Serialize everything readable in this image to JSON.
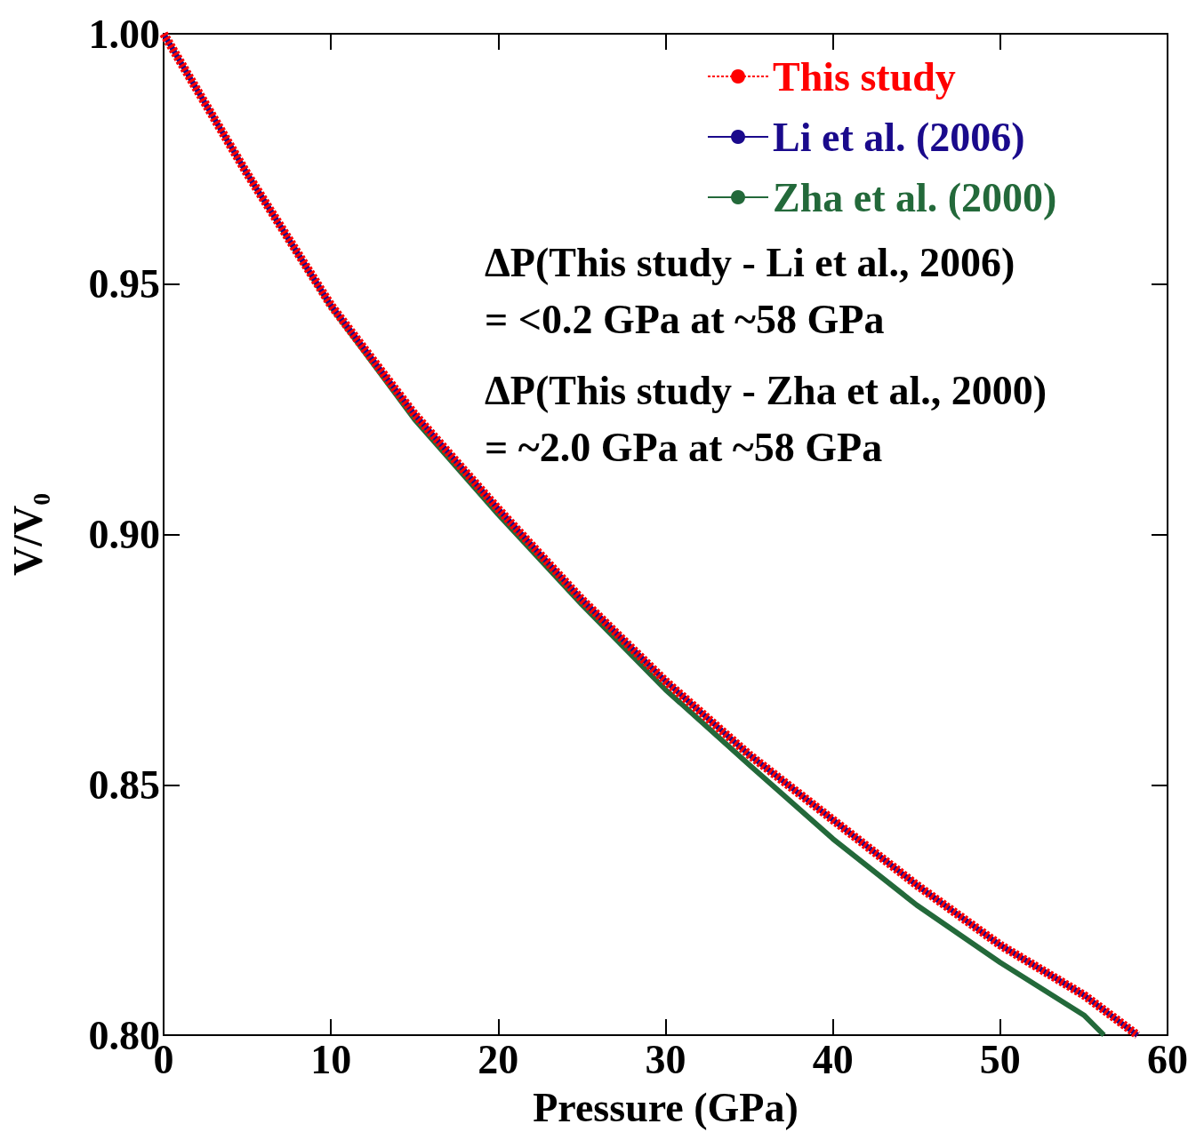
{
  "chart_data": {
    "type": "line",
    "xlabel": "Pressure (GPa)",
    "ylabel": "V/V₀",
    "xlim": [
      0,
      60
    ],
    "xticks": [
      0,
      10,
      20,
      30,
      40,
      50,
      60
    ],
    "ylim": [
      0.8,
      1.0
    ],
    "yticks": [
      {
        "value": 0.8,
        "label": "0.80"
      },
      {
        "value": 0.85,
        "label": "0.85"
      },
      {
        "value": 0.9,
        "label": "0.90"
      },
      {
        "value": 0.95,
        "label": "0.95"
      },
      {
        "value": 1.0,
        "label": "1.00"
      }
    ],
    "grid": false,
    "legend": "top right",
    "marker": "none",
    "series": [
      {
        "name": "This study",
        "color": "#ff0000",
        "line_style": "dashed",
        "x": [
          0,
          5,
          10,
          15,
          20,
          25,
          30,
          35,
          40,
          45,
          50,
          55,
          58.2
        ],
        "values": [
          1.0,
          0.972,
          0.9458,
          0.924,
          0.9051,
          0.887,
          0.8707,
          0.856,
          0.843,
          0.83,
          0.818,
          0.808,
          0.8
        ]
      },
      {
        "name": "Li et al. (2006)",
        "color": "#1a0a8c",
        "line_style": "solid",
        "x": [
          0,
          5,
          10,
          15,
          20,
          25,
          30,
          35,
          40,
          45,
          50,
          55,
          58.2
        ],
        "values": [
          1.0,
          0.972,
          0.9458,
          0.924,
          0.9051,
          0.887,
          0.8707,
          0.856,
          0.843,
          0.83,
          0.818,
          0.808,
          0.8
        ]
      },
      {
        "name": "Zha et al. (2000)",
        "color": "#23693a",
        "line_style": "solid",
        "x": [
          0,
          5,
          10,
          15,
          20,
          25,
          30,
          35,
          40,
          45,
          50,
          55,
          56.2
        ],
        "values": [
          1.0,
          0.972,
          0.9455,
          0.923,
          0.904,
          0.886,
          0.869,
          0.854,
          0.8392,
          0.826,
          0.8145,
          0.804,
          0.8
        ]
      }
    ],
    "annotations": [
      "ΔP(This study - Li et al., 2006)",
      "= <0.2 GPa at ~58 GPa",
      "ΔP(This study - Zha et al., 2000)",
      "= ~2.0 GPa at ~58 GPa"
    ]
  }
}
